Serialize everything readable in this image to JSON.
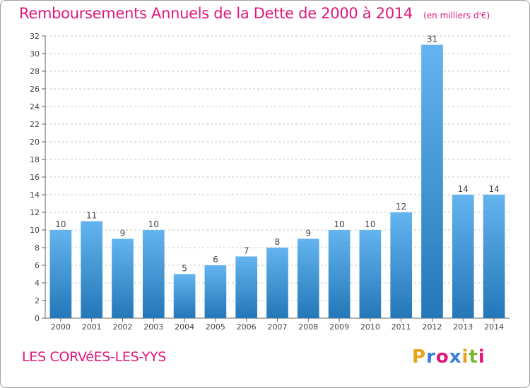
{
  "header": {
    "title": "Remboursements Annuels de la Dette de 2000 à 2014",
    "subtitle": "(en milliers d'€)"
  },
  "footer": {
    "commune": "LES CORVéES-LES-YYS",
    "logo_letters": [
      "P",
      "r",
      "o",
      "x",
      "i",
      "t",
      "i"
    ],
    "logo_colors": [
      "#e8a317",
      "#3a7fd5",
      "#e0187a",
      "#3a7fd5",
      "#e8a317",
      "#79b82a",
      "#e0187a"
    ]
  },
  "colors": {
    "title": "#e0187a",
    "bar_top": "#63b4ef",
    "bar_bottom": "#2477b8",
    "grid": "#c8c8c8",
    "background": "#ffffff"
  },
  "chart_data": {
    "type": "bar",
    "categories": [
      "2000",
      "2001",
      "2002",
      "2003",
      "2004",
      "2005",
      "2006",
      "2007",
      "2008",
      "2009",
      "2010",
      "2011",
      "2012",
      "2013",
      "2014"
    ],
    "values": [
      10,
      11,
      9,
      10,
      5,
      6,
      7,
      8,
      9,
      10,
      10,
      12,
      31,
      14,
      14
    ],
    "data_labels": [
      "10",
      "11",
      "9",
      "10",
      "5",
      "6",
      "7",
      "8",
      "9",
      "10",
      "10",
      "12",
      "31",
      "14",
      "14"
    ],
    "yticks": [
      "0",
      "2",
      "4",
      "6",
      "8",
      "10",
      "12",
      "14",
      "16",
      "18",
      "20",
      "22",
      "24",
      "26",
      "28",
      "30",
      "32"
    ],
    "ylim": [
      0,
      32
    ],
    "grid": true,
    "title": "Remboursements Annuels de la Dette de 2000 à 2014",
    "unit": "(en milliers d'€)"
  }
}
